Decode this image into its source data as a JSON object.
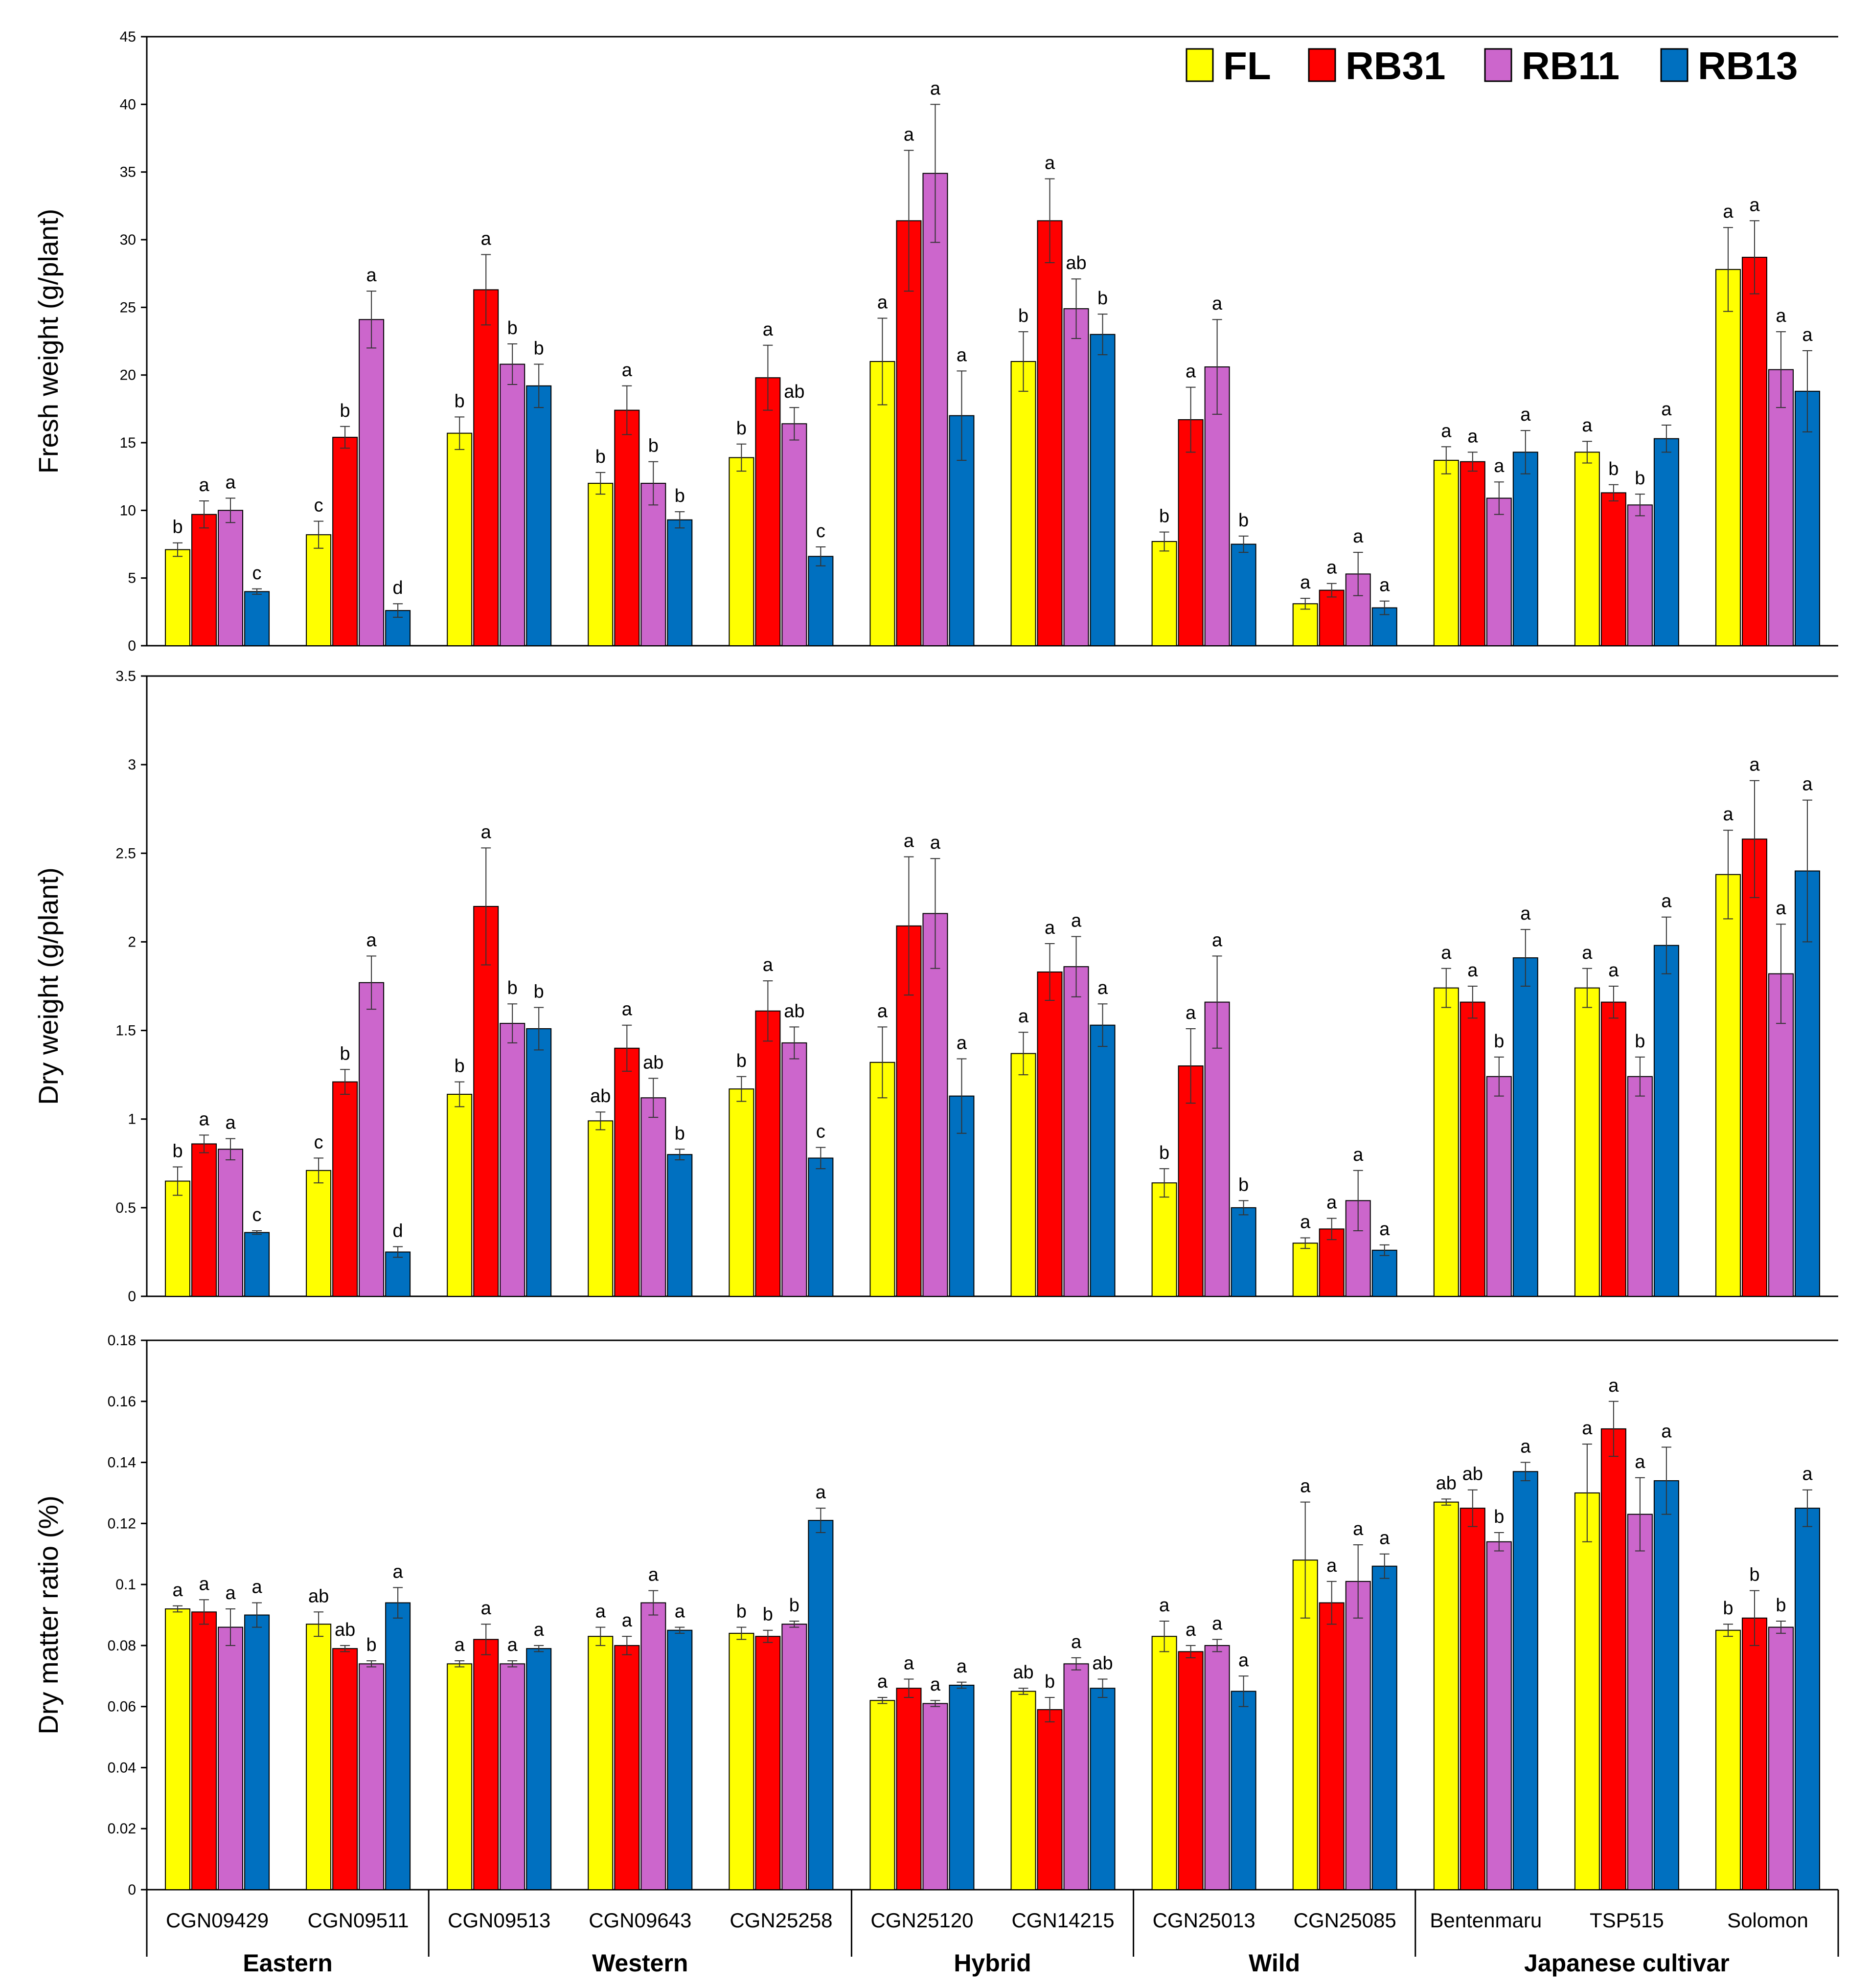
{
  "chart_data": [
    {
      "type": "bar",
      "panel": "fresh",
      "ylabel": "Fresh weight (g/plant)",
      "ylim": [
        0,
        45
      ],
      "yticks": [
        0,
        5,
        10,
        15,
        20,
        25,
        30,
        35,
        40,
        45
      ],
      "ytick_labels": [
        "0",
        "5",
        "10",
        "15",
        "20",
        "25",
        "30",
        "35",
        "40",
        "45"
      ],
      "series": [
        {
          "name": "FL",
          "values": [
            7.1,
            8.2,
            15.7,
            12.0,
            13.9,
            21.0,
            21.0,
            7.7,
            3.1,
            13.7,
            14.3,
            27.8
          ],
          "errors": [
            0.5,
            1.0,
            1.2,
            0.8,
            1.0,
            3.2,
            2.2,
            0.7,
            0.4,
            1.0,
            0.8,
            3.1
          ],
          "letters": [
            "b",
            "c",
            "b",
            "b",
            "b",
            "a",
            "b",
            "b",
            "a",
            "a",
            "a",
            "a"
          ]
        },
        {
          "name": "RB31",
          "values": [
            9.7,
            15.4,
            26.3,
            17.4,
            19.8,
            31.4,
            31.4,
            16.7,
            4.1,
            13.6,
            11.3,
            28.7
          ],
          "errors": [
            1.0,
            0.8,
            2.6,
            1.8,
            2.4,
            5.2,
            3.1,
            2.4,
            0.5,
            0.7,
            0.6,
            2.7
          ],
          "letters": [
            "a",
            "b",
            "a",
            "a",
            "a",
            "a",
            "a",
            "a",
            "a",
            "a",
            "b",
            "a"
          ]
        },
        {
          "name": "RB11",
          "values": [
            10.0,
            24.1,
            20.8,
            12.0,
            16.4,
            34.9,
            24.9,
            20.6,
            5.3,
            10.9,
            10.4,
            20.4
          ],
          "errors": [
            0.9,
            2.1,
            1.5,
            1.6,
            1.2,
            5.1,
            2.2,
            3.5,
            1.6,
            1.2,
            0.8,
            2.8
          ],
          "letters": [
            "a",
            "a",
            "b",
            "b",
            "ab",
            "a",
            "ab",
            "a",
            "a",
            "a",
            "b",
            "a"
          ]
        },
        {
          "name": "RB13",
          "values": [
            4.0,
            2.6,
            19.2,
            9.3,
            6.6,
            17.0,
            23.0,
            7.5,
            2.8,
            14.3,
            15.3,
            18.8
          ],
          "errors": [
            0.2,
            0.5,
            1.6,
            0.6,
            0.7,
            3.3,
            1.5,
            0.6,
            0.5,
            1.6,
            1.0,
            3.0
          ],
          "letters": [
            "c",
            "d",
            "b",
            "b",
            "c",
            "a",
            "b",
            "b",
            "a",
            "a",
            "a",
            "a"
          ]
        }
      ]
    },
    {
      "type": "bar",
      "panel": "dry",
      "ylabel": "Dry weight (g/plant)",
      "ylim": [
        0,
        3.5
      ],
      "yticks": [
        0,
        0.5,
        1,
        1.5,
        2,
        2.5,
        3,
        3.5
      ],
      "ytick_labels": [
        "0",
        "0.5",
        "1",
        "1.5",
        "2",
        "2.5",
        "3",
        "3.5"
      ],
      "series": [
        {
          "name": "FL",
          "values": [
            0.65,
            0.71,
            1.14,
            0.99,
            1.17,
            1.32,
            1.37,
            0.64,
            0.3,
            1.74,
            1.74,
            2.38
          ],
          "errors": [
            0.08,
            0.07,
            0.07,
            0.05,
            0.07,
            0.2,
            0.12,
            0.08,
            0.03,
            0.11,
            0.11,
            0.25
          ],
          "letters": [
            "b",
            "c",
            "b",
            "ab",
            "b",
            "a",
            "a",
            "b",
            "a",
            "a",
            "a",
            "a"
          ]
        },
        {
          "name": "RB31",
          "values": [
            0.86,
            1.21,
            2.2,
            1.4,
            1.61,
            2.09,
            1.83,
            1.3,
            0.38,
            1.66,
            1.66,
            2.58
          ],
          "errors": [
            0.05,
            0.07,
            0.33,
            0.13,
            0.17,
            0.39,
            0.16,
            0.21,
            0.06,
            0.09,
            0.09,
            0.33
          ],
          "letters": [
            "a",
            "b",
            "a",
            "a",
            "a",
            "a",
            "a",
            "a",
            "a",
            "a",
            "a",
            "a"
          ]
        },
        {
          "name": "RB11",
          "values": [
            0.83,
            1.77,
            1.54,
            1.12,
            1.43,
            2.16,
            1.86,
            1.66,
            0.54,
            1.24,
            1.24,
            1.82
          ],
          "errors": [
            0.06,
            0.15,
            0.11,
            0.11,
            0.09,
            0.31,
            0.17,
            0.26,
            0.17,
            0.11,
            0.11,
            0.28
          ],
          "letters": [
            "a",
            "a",
            "b",
            "ab",
            "ab",
            "a",
            "a",
            "a",
            "a",
            "b",
            "b",
            "a"
          ]
        },
        {
          "name": "RB13",
          "values": [
            0.36,
            0.25,
            1.51,
            0.8,
            0.78,
            1.13,
            1.53,
            0.5,
            0.26,
            1.91,
            1.98,
            2.4
          ],
          "errors": [
            0.01,
            0.03,
            0.12,
            0.03,
            0.06,
            0.21,
            0.12,
            0.04,
            0.03,
            0.16,
            0.16,
            0.4
          ],
          "letters": [
            "c",
            "d",
            "b",
            "b",
            "c",
            "a",
            "a",
            "b",
            "a",
            "a",
            "a",
            "a"
          ]
        }
      ]
    },
    {
      "type": "bar",
      "panel": "ratio",
      "ylabel": "Dry matter ratio (%)",
      "ylim": [
        0,
        0.18
      ],
      "yticks": [
        0,
        0.02,
        0.04,
        0.06,
        0.08,
        0.1,
        0.12,
        0.14,
        0.16,
        0.18
      ],
      "ytick_labels": [
        "0",
        "0.02",
        "0.04",
        "0.06",
        "0.08",
        "0.1",
        "0.12",
        "0.14",
        "0.16",
        "0.18"
      ],
      "series": [
        {
          "name": "FL",
          "values": [
            0.092,
            0.087,
            0.074,
            0.083,
            0.084,
            0.062,
            0.065,
            0.083,
            0.108,
            0.127,
            0.13,
            0.085
          ],
          "errors": [
            0.001,
            0.004,
            0.001,
            0.003,
            0.002,
            0.001,
            0.001,
            0.005,
            0.019,
            0.001,
            0.016,
            0.002
          ],
          "letters": [
            "a",
            "ab",
            "a",
            "a",
            "b",
            "a",
            "ab",
            "a",
            "a",
            "ab",
            "a",
            "b"
          ]
        },
        {
          "name": "RB31",
          "values": [
            0.091,
            0.079,
            0.082,
            0.08,
            0.083,
            0.066,
            0.059,
            0.078,
            0.094,
            0.125,
            0.151,
            0.089
          ],
          "errors": [
            0.004,
            0.001,
            0.005,
            0.003,
            0.002,
            0.003,
            0.004,
            0.002,
            0.007,
            0.006,
            0.009,
            0.009
          ],
          "letters": [
            "a",
            "ab",
            "a",
            "a",
            "b",
            "a",
            "b",
            "a",
            "a",
            "ab",
            "a",
            "b"
          ]
        },
        {
          "name": "RB11",
          "values": [
            0.086,
            0.074,
            0.074,
            0.094,
            0.087,
            0.061,
            0.074,
            0.08,
            0.101,
            0.114,
            0.123,
            0.086
          ],
          "errors": [
            0.006,
            0.001,
            0.001,
            0.004,
            0.001,
            0.001,
            0.002,
            0.002,
            0.012,
            0.003,
            0.012,
            0.002
          ],
          "letters": [
            "a",
            "b",
            "a",
            "a",
            "b",
            "a",
            "a",
            "a",
            "a",
            "b",
            "a",
            "b"
          ]
        },
        {
          "name": "RB13",
          "values": [
            0.09,
            0.094,
            0.079,
            0.085,
            0.121,
            0.067,
            0.066,
            0.065,
            0.106,
            0.137,
            0.134,
            0.125
          ],
          "errors": [
            0.004,
            0.005,
            0.001,
            0.001,
            0.004,
            0.001,
            0.003,
            0.005,
            0.004,
            0.003,
            0.011,
            0.006
          ],
          "letters": [
            "a",
            "a",
            "a",
            "a",
            "a",
            "a",
            "ab",
            "a",
            "a",
            "a",
            "a",
            "a"
          ]
        }
      ]
    }
  ],
  "categories": [
    "CGN09429",
    "CGN09511",
    "CGN09513",
    "CGN09643",
    "CGN25258",
    "CGN25120",
    "CGN14215",
    "CGN25013",
    "CGN25085",
    "Bentenmaru",
    "TSP515",
    "Solomon"
  ],
  "groups": [
    {
      "label": "Eastern",
      "start": 0,
      "end": 1
    },
    {
      "label": "Western",
      "start": 2,
      "end": 4
    },
    {
      "label": "Hybrid",
      "start": 5,
      "end": 6
    },
    {
      "label": "Wild",
      "start": 7,
      "end": 8
    },
    {
      "label": "Japanese cultivar",
      "start": 9,
      "end": 11
    }
  ],
  "legend": {
    "position": "top-right",
    "entries": [
      {
        "label": "FL",
        "color": "#FFFF00"
      },
      {
        "label": "RB31",
        "color": "#FF0000"
      },
      {
        "label": "RB11",
        "color": "#CC66CC"
      },
      {
        "label": "RB13",
        "color": "#0070C0"
      }
    ]
  }
}
